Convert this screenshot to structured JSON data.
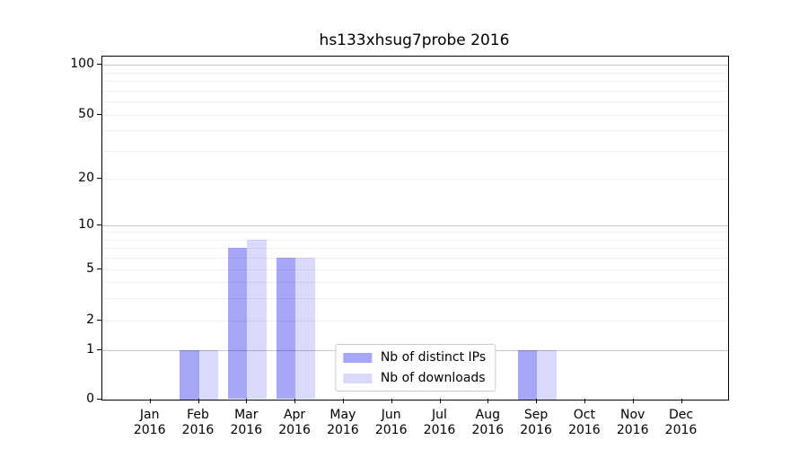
{
  "title": "hs133xhsug7probe 2016",
  "chart_data": {
    "type": "bar",
    "title": "hs133xhsug7probe 2016",
    "x_categories": [
      "Jan",
      "Feb",
      "Mar",
      "Apr",
      "May",
      "Jun",
      "Jul",
      "Aug",
      "Sep",
      "Oct",
      "Nov",
      "Dec"
    ],
    "x_sublabel": "2016",
    "series": [
      {
        "name": "Nb of distinct IPs",
        "color": "rgba(0,0,238,0.35)",
        "values": [
          0,
          1,
          7,
          6,
          0,
          0,
          0,
          0,
          1,
          0,
          0,
          0
        ]
      },
      {
        "name": "Nb of downloads",
        "color": "rgba(0,0,238,0.15)",
        "values": [
          0,
          1,
          8,
          6,
          0,
          0,
          0,
          0,
          1,
          0,
          0,
          0
        ]
      }
    ],
    "yscale": "symlog",
    "ylim": [
      0,
      100
    ],
    "y_ticks": [
      0,
      1,
      2,
      5,
      10,
      20,
      50,
      100
    ],
    "y_major_grid": [
      1,
      10,
      100
    ],
    "y_minor_grid": [
      2,
      3,
      4,
      5,
      6,
      7,
      8,
      9,
      20,
      30,
      40,
      50,
      60,
      70,
      80,
      90
    ],
    "grid_major_color": "#c6c6c6",
    "grid_minor_color": "#efefef",
    "legend_position": "lower center",
    "legend_labels": [
      "Nb of distinct IPs",
      "Nb of downloads"
    ]
  }
}
